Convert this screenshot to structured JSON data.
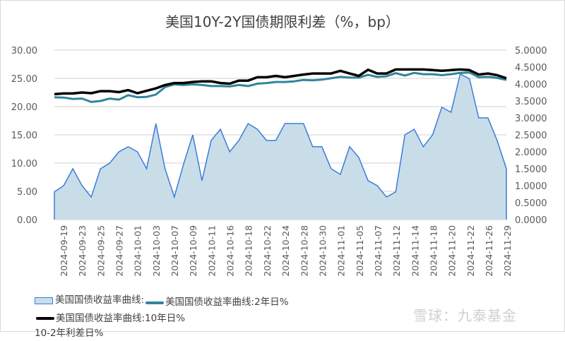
{
  "chart_data": {
    "type": "area+line",
    "title": "美国10Y-2Y国债期限利差（%，bp）",
    "x_tick_labels": [
      "2024-09-19",
      "2024-09-23",
      "2024-09-25",
      "2024-09-27",
      "2024-10-01",
      "2024-10-03",
      "2024-10-07",
      "2024-10-09",
      "2024-10-11",
      "2024-10-16",
      "2024-10-18",
      "2024-10-22",
      "2024-10-24",
      "2024-10-28",
      "2024-10-30",
      "2024-11-01",
      "2024-11-05",
      "2024-11-07",
      "2024-11-12",
      "2024-11-14",
      "2024-11-18",
      "2024-11-20",
      "2024-11-22",
      "2024-11-26",
      "2024-11-29"
    ],
    "y_left": {
      "range": [
        0,
        30
      ],
      "ticks": [
        "0.00",
        "5.00",
        "10.00",
        "15.00",
        "20.00",
        "25.00",
        "30.00"
      ]
    },
    "y_right": {
      "range": [
        0,
        5
      ],
      "ticks": [
        "0.0000",
        "0.5000",
        "1.0000",
        "1.5000",
        "2.0000",
        "2.5000",
        "3.0000",
        "3.5000",
        "4.0000",
        "4.5000",
        "5.0000"
      ]
    },
    "grid": true,
    "legend_placement": "bottom",
    "series": [
      {
        "name": "美国国债收益率曲线:10-2年利差日%",
        "type": "area",
        "axis": "left",
        "color": "#3b7dd8",
        "fill": "#c9dde8",
        "values": [
          4.9,
          6.0,
          9.0,
          6.0,
          4.0,
          9.0,
          10.0,
          12.0,
          12.9,
          12.0,
          9.0,
          17.0,
          9.0,
          4.0,
          9.8,
          15.0,
          6.9,
          14.0,
          16.0,
          12.0,
          14.0,
          17.0,
          16.0,
          14.0,
          14.0,
          17.0,
          17.0,
          17.0,
          12.9,
          12.9,
          9.0,
          8.0,
          12.9,
          11.0,
          6.9,
          6.0,
          4.0,
          4.9,
          15.0,
          16.0,
          12.9,
          15.0,
          19.9,
          19.0,
          25.8,
          24.9,
          18.0,
          18.0,
          14.0,
          9.0
        ]
      },
      {
        "name": "美国国债收益率曲线:2年日%",
        "type": "line",
        "axis": "right",
        "color": "#31859c",
        "values": [
          3.61,
          3.6,
          3.56,
          3.57,
          3.47,
          3.5,
          3.57,
          3.54,
          3.67,
          3.61,
          3.62,
          3.69,
          3.91,
          3.99,
          3.97,
          3.99,
          3.97,
          3.94,
          3.94,
          3.93,
          3.97,
          3.94,
          4.01,
          4.03,
          4.06,
          4.06,
          4.08,
          4.12,
          4.11,
          4.13,
          4.17,
          4.21,
          4.19,
          4.19,
          4.27,
          4.21,
          4.23,
          4.32,
          4.25,
          4.33,
          4.29,
          4.29,
          4.26,
          4.29,
          4.33,
          4.34,
          4.2,
          4.21,
          4.18,
          4.12
        ]
      },
      {
        "name": "美国国债收益率曲线:10年日%",
        "type": "line",
        "axis": "right",
        "color": "#000000",
        "values": [
          3.7,
          3.72,
          3.72,
          3.75,
          3.73,
          3.79,
          3.79,
          3.76,
          3.82,
          3.73,
          3.8,
          3.87,
          3.97,
          4.03,
          4.03,
          4.06,
          4.08,
          4.08,
          4.03,
          4.01,
          4.1,
          4.1,
          4.2,
          4.2,
          4.24,
          4.2,
          4.24,
          4.28,
          4.31,
          4.31,
          4.31,
          4.39,
          4.31,
          4.24,
          4.42,
          4.31,
          4.31,
          4.43,
          4.43,
          4.43,
          4.43,
          4.41,
          4.39,
          4.41,
          4.43,
          4.41,
          4.28,
          4.31,
          4.26,
          4.17
        ]
      }
    ]
  },
  "legend": {
    "area_label": "美国国债收益率曲线:",
    "line2y_label": "美国国债收益率曲线:2年日%",
    "line10y_label": "美国国债收益率曲线:10年日%",
    "area_label_cont": "10-2年利差日%"
  },
  "watermark": "雪球：九泰基金"
}
